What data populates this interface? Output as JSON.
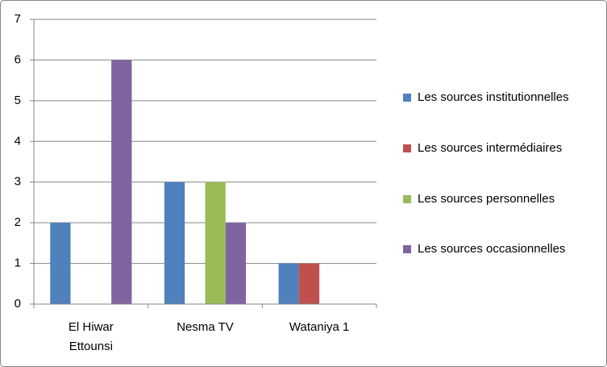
{
  "chart_data": {
    "type": "bar",
    "categories": [
      "El Hiwar Ettounsi",
      "Nesma TV",
      "Wataniya 1"
    ],
    "series": [
      {
        "name": "Les sources institutionnelles",
        "color": "#4f81bd",
        "values": [
          2,
          3,
          1
        ]
      },
      {
        "name": "Les sources intermédiaires",
        "color": "#c0504d",
        "values": [
          0,
          0,
          1
        ]
      },
      {
        "name": "Les sources personnelles",
        "color": "#9bbb59",
        "values": [
          0,
          3,
          0
        ]
      },
      {
        "name": "Les sources occasionnelles",
        "color": "#8064a2",
        "values": [
          6,
          2,
          0
        ]
      }
    ],
    "ylim": [
      0,
      7
    ],
    "yticks": [
      0,
      1,
      2,
      3,
      4,
      5,
      6,
      7
    ],
    "grid": true,
    "legend": "right"
  }
}
